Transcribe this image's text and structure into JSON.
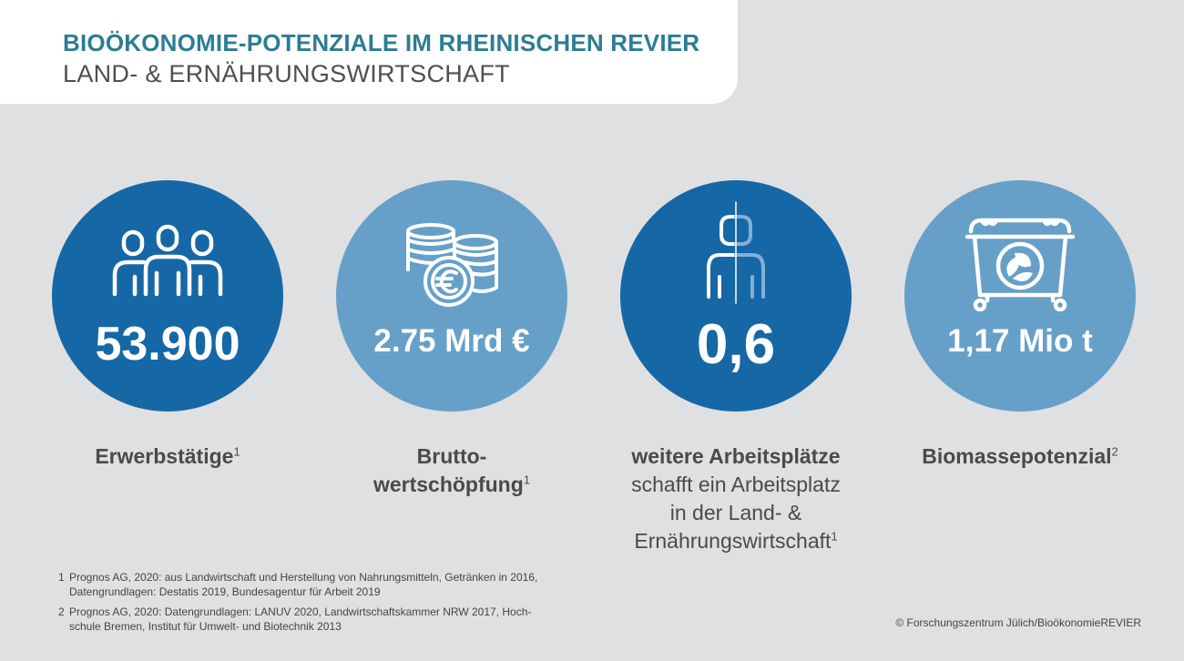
{
  "header": {
    "title": "BIOÖKONOMIE-POTENZIALE IM RHEINISCHEN REVIER",
    "subtitle": "LAND- & ERNÄHRUNGSWIRTSCHAFT"
  },
  "colors": {
    "dark_blue": "#1667a6",
    "light_blue": "#669fc8",
    "title_teal": "#2b7d93",
    "background": "#dfe0e2"
  },
  "stats": [
    {
      "icon": "people-group-icon",
      "value": "53.900",
      "label_bold": "Erwerbstätige",
      "label_sup": "1"
    },
    {
      "icon": "euro-coins-icon",
      "value": "2.75 Mrd €",
      "label_bold_1": "Brutto-",
      "label_bold_2": "wertschöpfung",
      "label_sup": "1"
    },
    {
      "icon": "person-half-icon",
      "value": "0,6",
      "label_bold": "weitere Arbeitsplätze",
      "label_line_2": "schafft ein Arbeitsplatz",
      "label_line_3": "in der Land- &",
      "label_line_4": "Ernährungswirtschaft",
      "label_sup": "1"
    },
    {
      "icon": "biomass-container-leaf-icon",
      "value": "1,17 Mio t",
      "label_bold": "Biomassepotenzial",
      "label_sup": "2"
    }
  ],
  "footnotes": [
    {
      "num": "1",
      "line_1": "Prognos AG, 2020: aus Landwirtschaft und Herstellung von Nahrungsmitteln, Getränken in 2016,",
      "line_2": "Datengrundlagen: Destatis 2019, Bundesagentur für Arbeit 2019"
    },
    {
      "num": "2",
      "line_1": "Prognos AG, 2020: Datengrundlagen: LANUV 2020, Landwirtschaftskammer NRW 2017, Hoch-",
      "line_2": "schule Bremen, Institut für Umwelt- und Biotechnik 2013"
    }
  ],
  "copyright": "© Forschungszentrum Jülich/BioökonomieREVIER"
}
